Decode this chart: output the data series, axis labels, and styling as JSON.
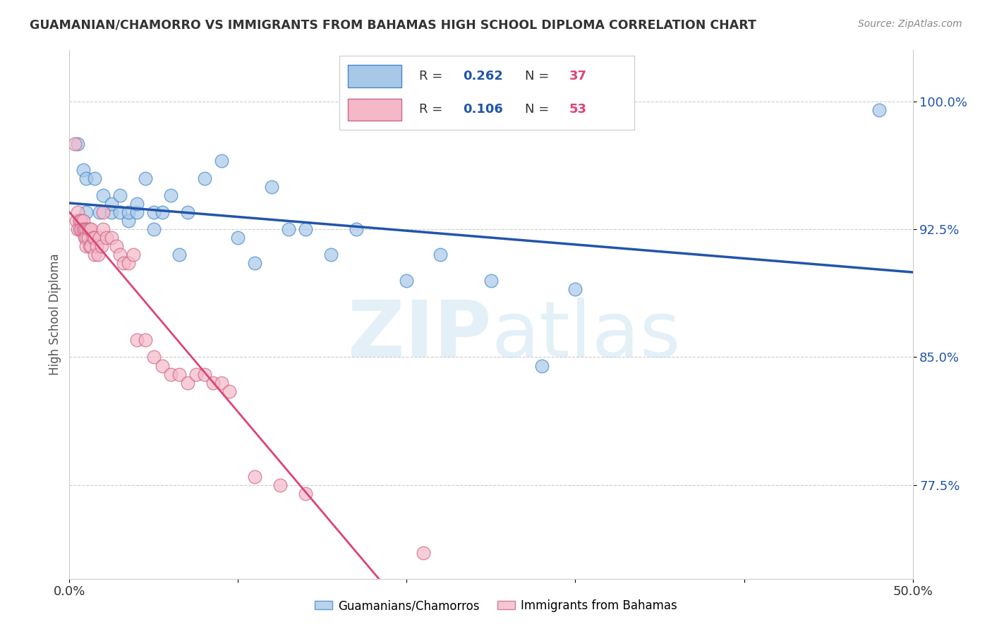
{
  "title": "GUAMANIAN/CHAMORRO VS IMMIGRANTS FROM BAHAMAS HIGH SCHOOL DIPLOMA CORRELATION CHART",
  "source": "Source: ZipAtlas.com",
  "ylabel": "High School Diploma",
  "xlim": [
    0.0,
    0.5
  ],
  "ylim": [
    0.72,
    1.03
  ],
  "yticks": [
    0.775,
    0.85,
    0.925,
    1.0
  ],
  "ytick_labels": [
    "77.5%",
    "85.0%",
    "92.5%",
    "100.0%"
  ],
  "xticks": [
    0.0,
    0.1,
    0.2,
    0.3,
    0.4,
    0.5
  ],
  "xtick_labels": [
    "0.0%",
    "",
    "",
    "",
    "",
    "50.0%"
  ],
  "legend_label1": "Guamanians/Chamorros",
  "legend_label2": "Immigrants from Bahamas",
  "blue_color": "#a8c8e8",
  "pink_color": "#f4b8c8",
  "blue_edge_color": "#4488cc",
  "pink_edge_color": "#cc6688",
  "blue_line_color": "#2255aa",
  "pink_line_color": "#dd4477",
  "pink_dash_color": "#dd88aa",
  "r1_text": "R = ",
  "r1_val": "0.262",
  "n1_text": "  N = ",
  "n1_val": "37",
  "r2_text": "R = ",
  "r2_val": "0.106",
  "n2_text": "  N = ",
  "n2_val": "53",
  "val_color": "#2255aa",
  "n_color": "#dd4477",
  "blue_scatter_x": [
    0.005,
    0.008,
    0.01,
    0.01,
    0.015,
    0.018,
    0.02,
    0.025,
    0.025,
    0.03,
    0.03,
    0.035,
    0.035,
    0.04,
    0.04,
    0.045,
    0.05,
    0.05,
    0.055,
    0.06,
    0.065,
    0.07,
    0.08,
    0.09,
    0.1,
    0.11,
    0.12,
    0.13,
    0.14,
    0.155,
    0.17,
    0.2,
    0.22,
    0.28,
    0.48,
    0.25,
    0.3
  ],
  "blue_scatter_y": [
    0.975,
    0.96,
    0.955,
    0.935,
    0.955,
    0.935,
    0.945,
    0.935,
    0.94,
    0.935,
    0.945,
    0.93,
    0.935,
    0.935,
    0.94,
    0.955,
    0.925,
    0.935,
    0.935,
    0.945,
    0.91,
    0.935,
    0.955,
    0.965,
    0.92,
    0.905,
    0.95,
    0.925,
    0.925,
    0.91,
    0.925,
    0.895,
    0.91,
    0.845,
    0.995,
    0.895,
    0.89
  ],
  "pink_scatter_x": [
    0.003,
    0.004,
    0.005,
    0.005,
    0.006,
    0.006,
    0.007,
    0.007,
    0.008,
    0.008,
    0.009,
    0.009,
    0.01,
    0.01,
    0.01,
    0.011,
    0.011,
    0.012,
    0.012,
    0.013,
    0.013,
    0.014,
    0.015,
    0.015,
    0.016,
    0.017,
    0.018,
    0.019,
    0.02,
    0.02,
    0.022,
    0.025,
    0.028,
    0.03,
    0.032,
    0.035,
    0.038,
    0.04,
    0.045,
    0.05,
    0.055,
    0.06,
    0.065,
    0.07,
    0.075,
    0.08,
    0.085,
    0.09,
    0.095,
    0.11,
    0.125,
    0.14,
    0.21
  ],
  "pink_scatter_y": [
    0.975,
    0.93,
    0.935,
    0.925,
    0.93,
    0.925,
    0.93,
    0.925,
    0.93,
    0.925,
    0.925,
    0.92,
    0.925,
    0.92,
    0.915,
    0.925,
    0.92,
    0.925,
    0.915,
    0.925,
    0.915,
    0.92,
    0.92,
    0.91,
    0.915,
    0.91,
    0.92,
    0.915,
    0.935,
    0.925,
    0.92,
    0.92,
    0.915,
    0.91,
    0.905,
    0.905,
    0.91,
    0.86,
    0.86,
    0.85,
    0.845,
    0.84,
    0.84,
    0.835,
    0.84,
    0.84,
    0.835,
    0.835,
    0.83,
    0.78,
    0.775,
    0.77,
    0.735
  ]
}
